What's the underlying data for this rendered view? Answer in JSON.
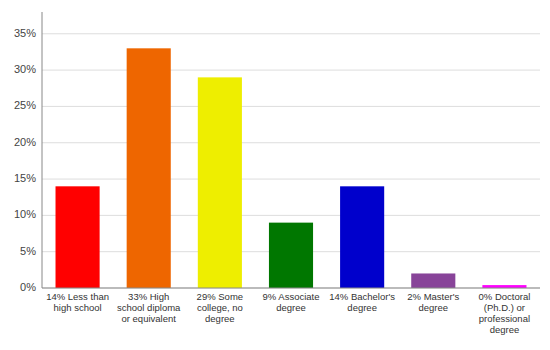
{
  "chart_data": {
    "type": "bar",
    "categories": [
      "14% Less than\nhigh school",
      "33% High\nschool diploma\nor equivalent",
      "29% Some\ncollege, no\ndegree",
      "9% Associate\ndegree",
      "14% Bachelor's\ndegree",
      "2% Master's\ndegree",
      "0% Doctoral\n(Ph.D.) or\nprofessional\ndegree"
    ],
    "values": [
      14,
      33,
      29,
      9,
      14,
      2,
      0.4
    ],
    "colors": [
      "#ff0000",
      "#ee6600",
      "#eeee00",
      "#007700",
      "#0000cc",
      "#884499",
      "#ff00ff"
    ],
    "ylim": [
      0,
      38
    ],
    "yticks": [
      {
        "value": 0,
        "label": "0%"
      },
      {
        "value": 5,
        "label": "5%"
      },
      {
        "value": 10,
        "label": "10%"
      },
      {
        "value": 15,
        "label": "15%"
      },
      {
        "value": 20,
        "label": "20%"
      },
      {
        "value": 25,
        "label": "25%"
      },
      {
        "value": 30,
        "label": "30%"
      },
      {
        "value": 35,
        "label": "35%"
      }
    ],
    "grid": true
  }
}
